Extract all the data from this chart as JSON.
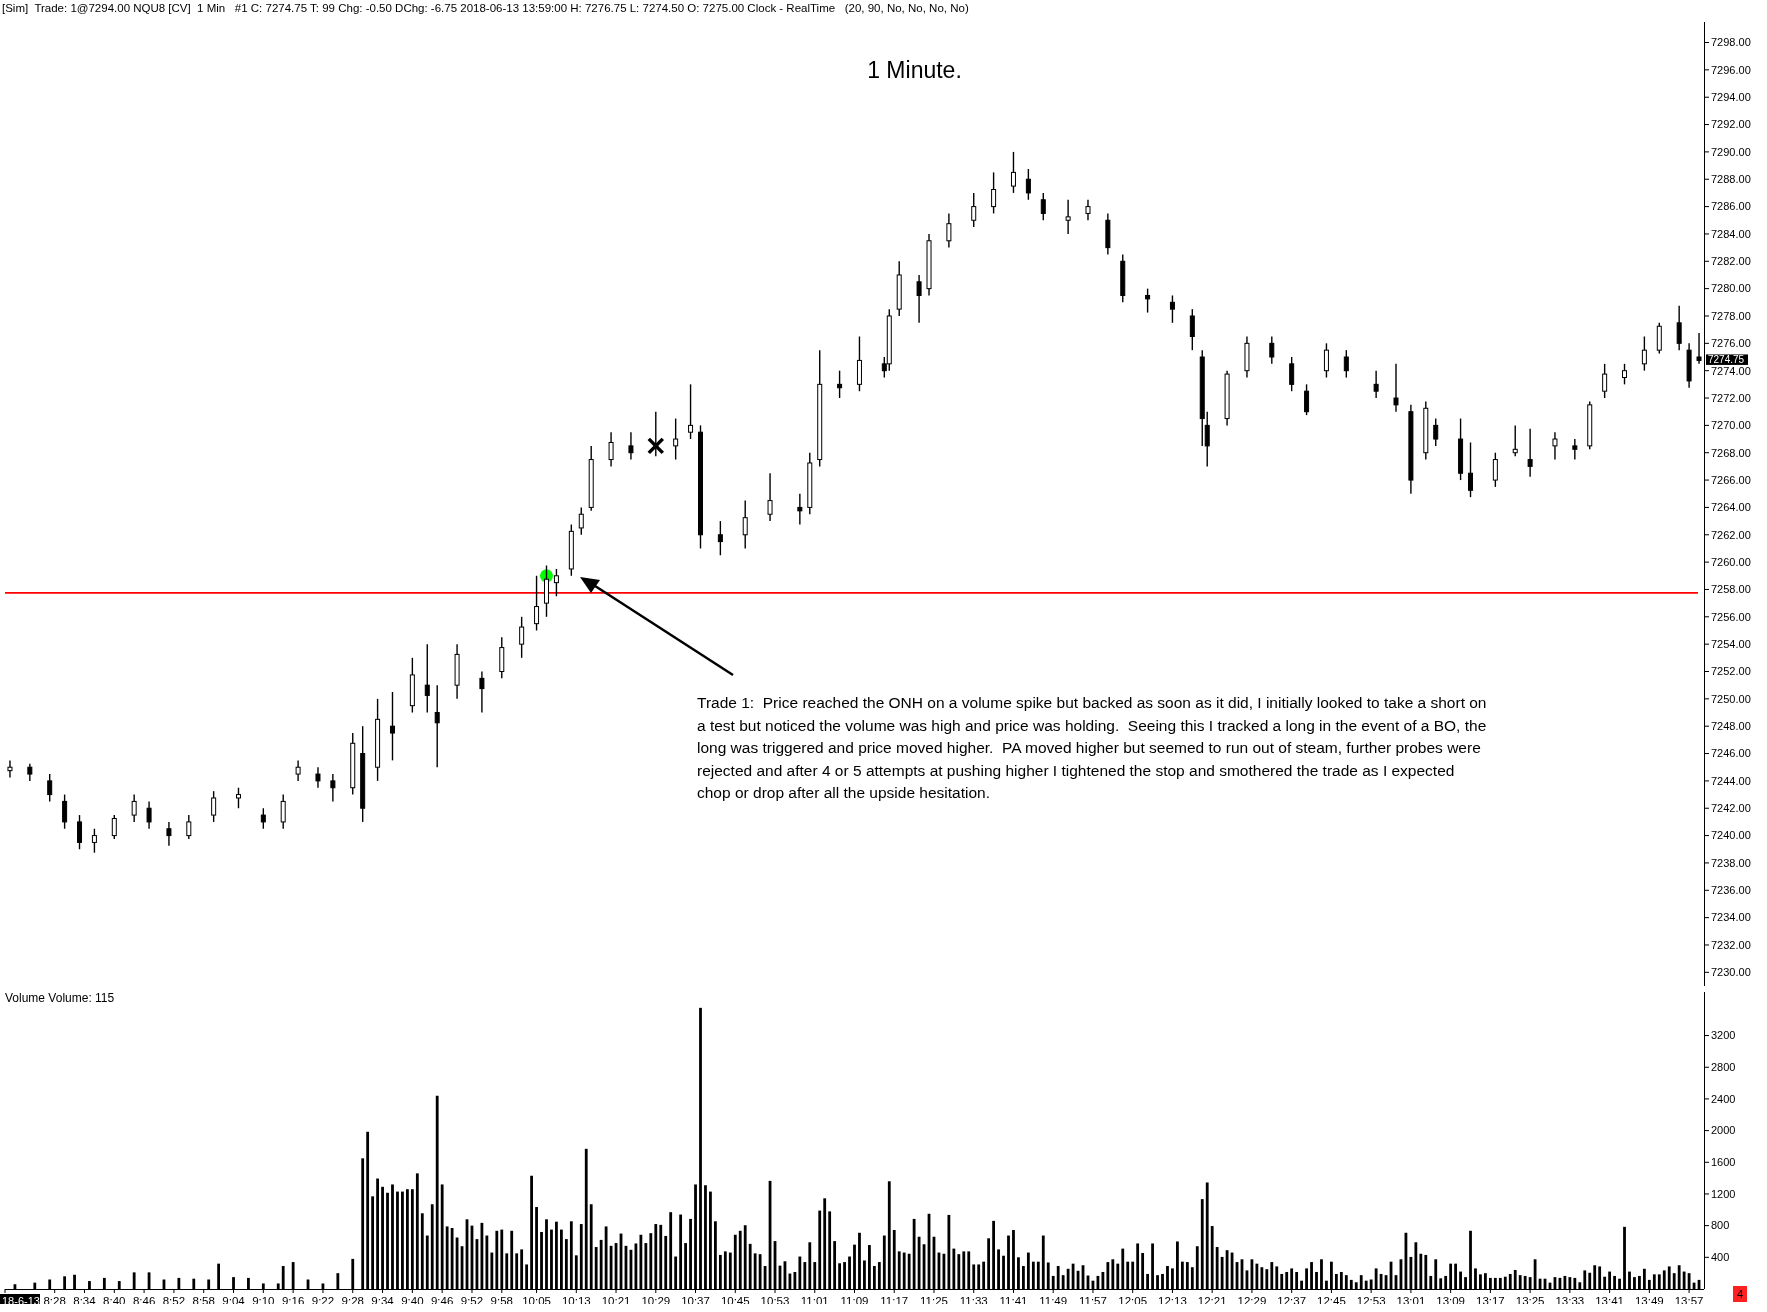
{
  "chart_data": [
    {
      "type": "candlestick",
      "title": "1 Minute.",
      "x": [
        "2018-06-13T08:19",
        "2018-06-13T08:23",
        "2018-06-13T08:27",
        "2018-06-13T08:30",
        "2018-06-13T08:33",
        "2018-06-13T08:36",
        "2018-06-13T08:40",
        "2018-06-13T08:44",
        "2018-06-13T08:47",
        "2018-06-13T08:51",
        "2018-06-13T08:55",
        "2018-06-13T09:00",
        "2018-06-13T09:05",
        "2018-06-13T09:10",
        "2018-06-13T09:14",
        "2018-06-13T09:17",
        "2018-06-13T09:21",
        "2018-06-13T09:24",
        "2018-06-13T09:28",
        "2018-06-13T09:30",
        "2018-06-13T09:33",
        "2018-06-13T09:36",
        "2018-06-13T09:40",
        "2018-06-13T09:43",
        "2018-06-13T09:45",
        "2018-06-13T09:49",
        "2018-06-13T09:54",
        "2018-06-13T09:58",
        "2018-06-13T10:02",
        "2018-06-13T10:05",
        "2018-06-13T10:07",
        "2018-06-13T10:09",
        "2018-06-13T10:12",
        "2018-06-13T10:14",
        "2018-06-13T10:16",
        "2018-06-13T10:20",
        "2018-06-13T10:24",
        "2018-06-13T10:29",
        "2018-06-13T10:33",
        "2018-06-13T10:36",
        "2018-06-13T10:38",
        "2018-06-13T10:42",
        "2018-06-13T10:47",
        "2018-06-13T10:52",
        "2018-06-13T10:58",
        "2018-06-13T11:00",
        "2018-06-13T11:02",
        "2018-06-13T11:06",
        "2018-06-13T11:10",
        "2018-06-13T11:15",
        "2018-06-13T11:16",
        "2018-06-13T11:18",
        "2018-06-13T11:22",
        "2018-06-13T11:24",
        "2018-06-13T11:28",
        "2018-06-13T11:33",
        "2018-06-13T11:37",
        "2018-06-13T11:41",
        "2018-06-13T11:44",
        "2018-06-13T11:47",
        "2018-06-13T11:52",
        "2018-06-13T11:56",
        "2018-06-13T12:00",
        "2018-06-13T12:03",
        "2018-06-13T12:08",
        "2018-06-13T12:13",
        "2018-06-13T12:17",
        "2018-06-13T12:19",
        "2018-06-13T12:20",
        "2018-06-13T12:24",
        "2018-06-13T12:28",
        "2018-06-13T12:33",
        "2018-06-13T12:37",
        "2018-06-13T12:40",
        "2018-06-13T12:44",
        "2018-06-13T12:48",
        "2018-06-13T12:54",
        "2018-06-13T12:58",
        "2018-06-13T13:01",
        "2018-06-13T13:04",
        "2018-06-13T13:06",
        "2018-06-13T13:11",
        "2018-06-13T13:13",
        "2018-06-13T13:18",
        "2018-06-13T13:22",
        "2018-06-13T13:25",
        "2018-06-13T13:30",
        "2018-06-13T13:34",
        "2018-06-13T13:37",
        "2018-06-13T13:40",
        "2018-06-13T13:44",
        "2018-06-13T13:48",
        "2018-06-13T13:51",
        "2018-06-13T13:55",
        "2018-06-13T13:57",
        "2018-06-13T13:59"
      ],
      "ohlc": [
        [
          7244.75,
          7245.5,
          7244.25,
          7245
        ],
        [
          7245,
          7245.25,
          7244,
          7244.5
        ],
        [
          7244,
          7244.5,
          7242.5,
          7243
        ],
        [
          7242.5,
          7243,
          7240.5,
          7241
        ],
        [
          7241,
          7241.5,
          7239,
          7239.5
        ],
        [
          7239.5,
          7240.5,
          7238.75,
          7240
        ],
        [
          7240,
          7241.5,
          7239.75,
          7241.25
        ],
        [
          7241.5,
          7243,
          7241,
          7242.5
        ],
        [
          7242,
          7242.5,
          7240.5,
          7241
        ],
        [
          7240.5,
          7241,
          7239.25,
          7240
        ],
        [
          7240,
          7241.5,
          7239.75,
          7241
        ],
        [
          7241.5,
          7243.25,
          7241,
          7242.75
        ],
        [
          7242.75,
          7243.5,
          7242,
          7243
        ],
        [
          7241.5,
          7242,
          7240.5,
          7241
        ],
        [
          7241,
          7243,
          7240.5,
          7242.5
        ],
        [
          7244.5,
          7245.5,
          7244,
          7245
        ],
        [
          7244.5,
          7245,
          7243.5,
          7244
        ],
        [
          7244,
          7244.5,
          7242.5,
          7243.5
        ],
        [
          7243.5,
          7247.5,
          7243,
          7246.75
        ],
        [
          7246,
          7248,
          7241,
          7242
        ],
        [
          7245,
          7250,
          7244,
          7248.5
        ],
        [
          7248,
          7250.5,
          7245.5,
          7247.5
        ],
        [
          7249.5,
          7253,
          7249,
          7251.75
        ],
        [
          7251,
          7254,
          7249,
          7250.25
        ],
        [
          7249,
          7251,
          7245,
          7248.25
        ],
        [
          7251,
          7254,
          7250,
          7253.25
        ],
        [
          7251.5,
          7252,
          7249,
          7250.75
        ],
        [
          7252,
          7254.5,
          7251.5,
          7253.75
        ],
        [
          7254,
          7256,
          7253,
          7255.25
        ],
        [
          7255.5,
          7259,
          7255,
          7256.75
        ],
        [
          7257,
          7259.75,
          7256,
          7258.75
        ],
        [
          7258.5,
          7259.5,
          7257.5,
          7259
        ],
        [
          7259.5,
          7262.75,
          7259,
          7262.25
        ],
        [
          7262.5,
          7264,
          7262,
          7263.5
        ],
        [
          7264,
          7268.5,
          7263.75,
          7267.5
        ],
        [
          7267.5,
          7269.5,
          7267,
          7268.75
        ],
        [
          7268.5,
          7269.5,
          7267.5,
          7268
        ],
        [
          7268.5,
          7271,
          7267.75,
          7268.5
        ],
        [
          7268.5,
          7270.5,
          7267.5,
          7269
        ],
        [
          7269.5,
          7273,
          7269,
          7270
        ],
        [
          7269.5,
          7270,
          7261,
          7262
        ],
        [
          7262,
          7263,
          7260.5,
          7261.5
        ],
        [
          7262,
          7264.5,
          7261,
          7263.25
        ],
        [
          7263.5,
          7266.5,
          7263,
          7264.5
        ],
        [
          7264,
          7265,
          7262.75,
          7263.75
        ],
        [
          7264,
          7268,
          7263.5,
          7267.25
        ],
        [
          7267.5,
          7275.5,
          7267,
          7273
        ],
        [
          7273,
          7274,
          7272,
          7272.75
        ],
        [
          7273,
          7276.5,
          7272.5,
          7274.75
        ],
        [
          7274.5,
          7275,
          7273.5,
          7274
        ],
        [
          7274.5,
          7278.5,
          7274,
          7278
        ],
        [
          7278.5,
          7282,
          7278,
          7281
        ],
        [
          7280.5,
          7281,
          7277.5,
          7279.5
        ],
        [
          7280,
          7284,
          7279.5,
          7283.5
        ],
        [
          7283.5,
          7285.5,
          7283,
          7284.75
        ],
        [
          7285,
          7287,
          7284.5,
          7286
        ],
        [
          7286,
          7288.5,
          7285.5,
          7287.25
        ],
        [
          7287.5,
          7290,
          7287,
          7288.5
        ],
        [
          7288,
          7288.75,
          7286.5,
          7287
        ],
        [
          7286.5,
          7287,
          7285,
          7285.5
        ],
        [
          7285,
          7286.5,
          7284,
          7285.25
        ],
        [
          7285.5,
          7286.5,
          7285,
          7286
        ],
        [
          7285,
          7285.5,
          7282.5,
          7283
        ],
        [
          7282,
          7282.5,
          7279,
          7279.5
        ],
        [
          7279.5,
          7280,
          7278.25,
          7279.25
        ],
        [
          7279,
          7279.5,
          7277.5,
          7278.5
        ],
        [
          7278,
          7278.5,
          7275.5,
          7276.5
        ],
        [
          7275,
          7275.5,
          7268.5,
          7270.5
        ],
        [
          7270,
          7271,
          7267,
          7268.5
        ],
        [
          7270.5,
          7274,
          7270,
          7273.75
        ],
        [
          7274,
          7276.5,
          7273.5,
          7276
        ],
        [
          7276,
          7276.5,
          7274.5,
          7275
        ],
        [
          7274.5,
          7275,
          7272.5,
          7273
        ],
        [
          7272.5,
          7273,
          7270.75,
          7271
        ],
        [
          7274,
          7276,
          7273.5,
          7275.5
        ],
        [
          7275,
          7275.5,
          7273.5,
          7274
        ],
        [
          7273,
          7274,
          7272,
          7272.5
        ],
        [
          7272,
          7274.5,
          7271,
          7271.5
        ],
        [
          7271,
          7271.5,
          7265,
          7266
        ],
        [
          7268,
          7271.75,
          7267.5,
          7271.25
        ],
        [
          7270,
          7270.5,
          7268.5,
          7269
        ],
        [
          7269,
          7270.5,
          7266,
          7266.5
        ],
        [
          7266.5,
          7268.75,
          7264.75,
          7265.25
        ],
        [
          7266,
          7268,
          7265.5,
          7267.5
        ],
        [
          7268,
          7270,
          7267.75,
          7268.25
        ],
        [
          7267.5,
          7269.75,
          7266.25,
          7267
        ],
        [
          7268.5,
          7269.5,
          7267.5,
          7269
        ],
        [
          7268.5,
          7269,
          7267.5,
          7268.25
        ],
        [
          7268.5,
          7271.75,
          7268.25,
          7271.5
        ],
        [
          7272.5,
          7274.5,
          7272,
          7273.75
        ],
        [
          7273.5,
          7274.5,
          7273,
          7274
        ],
        [
          7274.5,
          7276.5,
          7274,
          7275.5
        ],
        [
          7275.5,
          7277.5,
          7275.25,
          7277.25
        ],
        [
          7277.5,
          7278.75,
          7275.5,
          7276
        ],
        [
          7275.5,
          7276,
          7272.75,
          7273.25
        ],
        [
          7275,
          7276.75,
          7274.5,
          7274.75
        ]
      ],
      "series": [
        {
          "type": "scatter",
          "x": [
            "2018-06-13T10:07"
          ],
          "values": [
            7259
          ],
          "color": "#00ff00",
          "marker": "circle"
        },
        {
          "type": "scatter",
          "x": [
            "2018-06-13T10:29"
          ],
          "values": [
            7268.5
          ],
          "color": "#000000",
          "marker": "cross"
        }
      ],
      "xlim": [
        "2018-06-13T08:18",
        "2018-06-13T14:00"
      ],
      "ylim": [
        7229,
        7299.5
      ],
      "yticks": [
        {
          "value": 7230,
          "label": "7230.00"
        },
        {
          "value": 7232,
          "label": "7232.00"
        },
        {
          "value": 7234,
          "label": "7234.00"
        },
        {
          "value": 7236,
          "label": "7236.00"
        },
        {
          "value": 7238,
          "label": "7238.00"
        },
        {
          "value": 7240,
          "label": "7240.00"
        },
        {
          "value": 7242,
          "label": "7242.00"
        },
        {
          "value": 7244,
          "label": "7244.00"
        },
        {
          "value": 7246,
          "label": "7246.00"
        },
        {
          "value": 7248,
          "label": "7248.00"
        },
        {
          "value": 7250,
          "label": "7250.00"
        },
        {
          "value": 7252,
          "label": "7252.00"
        },
        {
          "value": 7254,
          "label": "7254.00"
        },
        {
          "value": 7256,
          "label": "7256.00"
        },
        {
          "value": 7258,
          "label": "7258.00"
        },
        {
          "value": 7260,
          "label": "7260.00"
        },
        {
          "value": 7262,
          "label": "7262.00"
        },
        {
          "value": 7264,
          "label": "7264.00"
        },
        {
          "value": 7266,
          "label": "7266.00"
        },
        {
          "value": 7268,
          "label": "7268.00"
        },
        {
          "value": 7270,
          "label": "7270.00"
        },
        {
          "value": 7272,
          "label": "7272.00"
        },
        {
          "value": 7274,
          "label": "7274.00"
        },
        {
          "value": 7276,
          "label": "7276.00"
        },
        {
          "value": 7278,
          "label": "7278.00"
        },
        {
          "value": 7280,
          "label": "7280.00"
        },
        {
          "value": 7282,
          "label": "7282.00"
        },
        {
          "value": 7284,
          "label": "7284.00"
        },
        {
          "value": 7286,
          "label": "7286.00"
        },
        {
          "value": 7288,
          "label": "7288.00"
        },
        {
          "value": 7290,
          "label": "7290.00"
        },
        {
          "value": 7292,
          "label": "7292.00"
        },
        {
          "value": 7294,
          "label": "7294.00"
        },
        {
          "value": 7296,
          "label": "7296.00"
        },
        {
          "value": 7298,
          "label": "7298.00"
        }
      ],
      "tick_labels": "y",
      "ref_lines": [
        {
          "axis": "y",
          "value": 7257.75,
          "label": null,
          "color": "#ff0000"
        }
      ],
      "annotations": [
        "[Sim]  Trade: 1@7294.00 NQU8 [CV]  1 Min   #1 C: 7274.75 T: 99 Chg: -0.50 DChg: -6.75 2018-06-13 13:59:00 H: 7276.75 L: 7274.50 O: 7275.00 Clock - RealTime   (20, 90, No, No, No, No)",
        "Trade 1:  Price reached the ONH on a volume spike but backed as soon as it did, I initially looked to take a short on a test but noticed the volume was high and price was holding.  Seeing this I tracked a long in the event of a BO, the long was triggered and price moved higher.  PA moved higher but seemed to run out of steam, further probes were rejected and after 4 or 5 attempts at pushing higher I tightened the stop and smothered the trade as I expected chop or drop after all the upside hesitation.",
        {
          "text": "7274.75",
          "x": "2018-06-13T13:59",
          "y": 7274.75
        }
      ]
    },
    {
      "type": "bar",
      "title": "Volume  Volume: 115",
      "color": "#000000",
      "x": [
        "2018-06-13T08:20",
        "2018-06-13T08:24",
        "2018-06-13T08:27",
        "2018-06-13T08:30",
        "2018-06-13T08:32",
        "2018-06-13T08:35",
        "2018-06-13T08:38",
        "2018-06-13T08:41",
        "2018-06-13T08:44",
        "2018-06-13T08:47",
        "2018-06-13T08:50",
        "2018-06-13T08:53",
        "2018-06-13T08:56",
        "2018-06-13T08:59",
        "2018-06-13T09:01",
        "2018-06-13T09:04",
        "2018-06-13T09:07",
        "2018-06-13T09:10",
        "2018-06-13T09:13",
        "2018-06-13T09:14",
        "2018-06-13T09:16",
        "2018-06-13T09:19",
        "2018-06-13T09:22",
        "2018-06-13T09:25",
        "2018-06-13T09:28",
        "2018-06-13T09:30",
        "2018-06-13T09:31",
        "2018-06-13T09:32",
        "2018-06-13T09:33",
        "2018-06-13T09:34",
        "2018-06-13T09:35",
        "2018-06-13T09:36",
        "2018-06-13T09:37",
        "2018-06-13T09:38",
        "2018-06-13T09:39",
        "2018-06-13T09:40",
        "2018-06-13T09:41",
        "2018-06-13T09:42",
        "2018-06-13T09:43",
        "2018-06-13T09:44",
        "2018-06-13T09:45",
        "2018-06-13T09:46",
        "2018-06-13T09:47",
        "2018-06-13T09:48",
        "2018-06-13T09:49",
        "2018-06-13T09:50",
        "2018-06-13T09:51",
        "2018-06-13T09:52",
        "2018-06-13T09:53",
        "2018-06-13T09:54",
        "2018-06-13T09:55",
        "2018-06-13T09:56",
        "2018-06-13T09:57",
        "2018-06-13T09:58",
        "2018-06-13T09:59",
        "2018-06-13T10:00",
        "2018-06-13T10:01",
        "2018-06-13T10:02",
        "2018-06-13T10:03",
        "2018-06-13T10:04",
        "2018-06-13T10:05",
        "2018-06-13T10:06",
        "2018-06-13T10:07",
        "2018-06-13T10:08",
        "2018-06-13T10:09",
        "2018-06-13T10:10",
        "2018-06-13T10:11",
        "2018-06-13T10:12",
        "2018-06-13T10:13",
        "2018-06-13T10:14",
        "2018-06-13T10:15",
        "2018-06-13T10:16",
        "2018-06-13T10:17",
        "2018-06-13T10:18",
        "2018-06-13T10:19",
        "2018-06-13T10:20",
        "2018-06-13T10:21",
        "2018-06-13T10:22",
        "2018-06-13T10:23",
        "2018-06-13T10:24",
        "2018-06-13T10:25",
        "2018-06-13T10:26",
        "2018-06-13T10:27",
        "2018-06-13T10:28",
        "2018-06-13T10:29",
        "2018-06-13T10:30",
        "2018-06-13T10:31",
        "2018-06-13T10:32",
        "2018-06-13T10:33",
        "2018-06-13T10:34",
        "2018-06-13T10:35",
        "2018-06-13T10:36",
        "2018-06-13T10:37",
        "2018-06-13T10:38",
        "2018-06-13T10:39",
        "2018-06-13T10:40",
        "2018-06-13T10:41",
        "2018-06-13T10:42",
        "2018-06-13T10:43",
        "2018-06-13T10:44",
        "2018-06-13T10:45",
        "2018-06-13T10:46",
        "2018-06-13T10:47",
        "2018-06-13T10:48",
        "2018-06-13T10:49",
        "2018-06-13T10:50",
        "2018-06-13T10:51",
        "2018-06-13T10:52",
        "2018-06-13T10:53",
        "2018-06-13T10:54",
        "2018-06-13T10:55",
        "2018-06-13T10:56",
        "2018-06-13T10:57",
        "2018-06-13T10:58",
        "2018-06-13T10:59",
        "2018-06-13T11:00",
        "2018-06-13T11:01",
        "2018-06-13T11:02",
        "2018-06-13T11:03",
        "2018-06-13T11:04",
        "2018-06-13T11:05",
        "2018-06-13T11:06",
        "2018-06-13T11:07",
        "2018-06-13T11:08",
        "2018-06-13T11:09",
        "2018-06-13T11:10",
        "2018-06-13T11:11",
        "2018-06-13T11:12",
        "2018-06-13T11:13",
        "2018-06-13T11:14",
        "2018-06-13T11:15",
        "2018-06-13T11:16",
        "2018-06-13T11:17",
        "2018-06-13T11:18",
        "2018-06-13T11:19",
        "2018-06-13T11:20",
        "2018-06-13T11:21",
        "2018-06-13T11:22",
        "2018-06-13T11:23",
        "2018-06-13T11:24",
        "2018-06-13T11:25",
        "2018-06-13T11:26",
        "2018-06-13T11:27",
        "2018-06-13T11:28",
        "2018-06-13T11:29",
        "2018-06-13T11:30",
        "2018-06-13T11:31",
        "2018-06-13T11:32",
        "2018-06-13T11:33",
        "2018-06-13T11:34",
        "2018-06-13T11:35",
        "2018-06-13T11:36",
        "2018-06-13T11:37",
        "2018-06-13T11:38",
        "2018-06-13T11:39",
        "2018-06-13T11:40",
        "2018-06-13T11:41",
        "2018-06-13T11:42",
        "2018-06-13T11:43",
        "2018-06-13T11:44",
        "2018-06-13T11:45",
        "2018-06-13T11:46",
        "2018-06-13T11:47",
        "2018-06-13T11:48",
        "2018-06-13T11:49",
        "2018-06-13T11:50",
        "2018-06-13T11:51",
        "2018-06-13T11:52",
        "2018-06-13T11:53",
        "2018-06-13T11:54",
        "2018-06-13T11:55",
        "2018-06-13T11:56",
        "2018-06-13T11:57",
        "2018-06-13T11:58",
        "2018-06-13T11:59",
        "2018-06-13T12:00",
        "2018-06-13T12:01",
        "2018-06-13T12:02",
        "2018-06-13T12:03",
        "2018-06-13T12:04",
        "2018-06-13T12:05",
        "2018-06-13T12:06",
        "2018-06-13T12:07",
        "2018-06-13T12:08",
        "2018-06-13T12:09",
        "2018-06-13T12:10",
        "2018-06-13T12:11",
        "2018-06-13T12:12",
        "2018-06-13T12:13",
        "2018-06-13T12:14",
        "2018-06-13T12:15",
        "2018-06-13T12:16",
        "2018-06-13T12:17",
        "2018-06-13T12:18",
        "2018-06-13T12:19",
        "2018-06-13T12:20",
        "2018-06-13T12:21",
        "2018-06-13T12:22",
        "2018-06-13T12:23",
        "2018-06-13T12:24",
        "2018-06-13T12:25",
        "2018-06-13T12:26",
        "2018-06-13T12:27",
        "2018-06-13T12:28",
        "2018-06-13T12:29",
        "2018-06-13T12:30",
        "2018-06-13T12:31",
        "2018-06-13T12:32",
        "2018-06-13T12:33",
        "2018-06-13T12:34",
        "2018-06-13T12:35",
        "2018-06-13T12:36",
        "2018-06-13T12:37",
        "2018-06-13T12:38",
        "2018-06-13T12:39",
        "2018-06-13T12:40",
        "2018-06-13T12:41",
        "2018-06-13T12:42",
        "2018-06-13T12:43",
        "2018-06-13T12:44",
        "2018-06-13T12:45",
        "2018-06-13T12:46",
        "2018-06-13T12:47",
        "2018-06-13T12:48",
        "2018-06-13T12:49",
        "2018-06-13T12:50",
        "2018-06-13T12:51",
        "2018-06-13T12:52",
        "2018-06-13T12:53",
        "2018-06-13T12:54",
        "2018-06-13T12:55",
        "2018-06-13T12:56",
        "2018-06-13T12:57",
        "2018-06-13T12:58",
        "2018-06-13T12:59",
        "2018-06-13T13:00",
        "2018-06-13T13:01",
        "2018-06-13T13:02",
        "2018-06-13T13:03",
        "2018-06-13T13:04",
        "2018-06-13T13:05",
        "2018-06-13T13:06",
        "2018-06-13T13:07",
        "2018-06-13T13:08",
        "2018-06-13T13:09",
        "2018-06-13T13:10",
        "2018-06-13T13:11",
        "2018-06-13T13:12",
        "2018-06-13T13:13",
        "2018-06-13T13:14",
        "2018-06-13T13:15",
        "2018-06-13T13:16",
        "2018-06-13T13:17",
        "2018-06-13T13:18",
        "2018-06-13T13:19",
        "2018-06-13T13:20",
        "2018-06-13T13:21",
        "2018-06-13T13:22",
        "2018-06-13T13:23",
        "2018-06-13T13:24",
        "2018-06-13T13:25",
        "2018-06-13T13:26",
        "2018-06-13T13:27",
        "2018-06-13T13:28",
        "2018-06-13T13:29",
        "2018-06-13T13:30",
        "2018-06-13T13:31",
        "2018-06-13T13:32",
        "2018-06-13T13:33",
        "2018-06-13T13:34",
        "2018-06-13T13:35",
        "2018-06-13T13:36",
        "2018-06-13T13:37",
        "2018-06-13T13:38",
        "2018-06-13T13:39",
        "2018-06-13T13:40",
        "2018-06-13T13:41",
        "2018-06-13T13:42",
        "2018-06-13T13:43",
        "2018-06-13T13:44",
        "2018-06-13T13:45",
        "2018-06-13T13:46",
        "2018-06-13T13:47",
        "2018-06-13T13:48",
        "2018-06-13T13:49",
        "2018-06-13T13:50",
        "2018-06-13T13:51",
        "2018-06-13T13:52",
        "2018-06-13T13:53",
        "2018-06-13T13:54",
        "2018-06-13T13:55",
        "2018-06-13T13:56",
        "2018-06-13T13:57",
        "2018-06-13T13:58",
        "2018-06-13T13:59"
      ],
      "values": [
        60,
        80,
        120,
        160,
        180,
        100,
        140,
        100,
        210,
        210,
        120,
        140,
        130,
        120,
        320,
        150,
        140,
        70,
        70,
        290,
        340,
        120,
        70,
        200,
        380,
        1650,
        1985,
        1170,
        1395,
        1290,
        1215,
        1320,
        1230,
        1230,
        1260,
        1260,
        1460,
        956,
        675,
        1070,
        2440,
        1320,
        790,
        770,
        650,
        540,
        880,
        800,
        630,
        835,
        675,
        460,
        735,
        750,
        450,
        735,
        450,
        500,
        310,
        1430,
        1035,
        720,
        880,
        750,
        850,
        750,
        630,
        855,
        425,
        820,
        1770,
        1070,
        530,
        620,
        790,
        545,
        580,
        700,
        545,
        495,
        575,
        685,
        580,
        705,
        820,
        810,
        670,
        970,
        410,
        940,
        580,
        885,
        1320,
        3550,
        1310,
        1230,
        855,
        430,
        475,
        460,
        685,
        735,
        805,
        570,
        450,
        440,
        290,
        1365,
        605,
        295,
        350,
        195,
        215,
        410,
        340,
        590,
        340,
        990,
        1145,
        980,
        605,
        325,
        340,
        410,
        560,
        710,
        360,
        555,
        290,
        340,
        675,
        1360,
        745,
        475,
        460,
        445,
        885,
        660,
        565,
        950,
        660,
        460,
        445,
        935,
        510,
        440,
        475,
        475,
        310,
        310,
        345,
        640,
        860,
        500,
        420,
        675,
        745,
        400,
        290,
        460,
        345,
        345,
        675,
        335,
        165,
        290,
        175,
        255,
        320,
        230,
        300,
        170,
        105,
        165,
        215,
        340,
        375,
        320,
        510,
        345,
        345,
        575,
        455,
        190,
        575,
        175,
        190,
        290,
        260,
        600,
        345,
        340,
        275,
        540,
        1135,
        1345,
        795,
        530,
        405,
        490,
        460,
        340,
        375,
        235,
        375,
        320,
        275,
        250,
        340,
        285,
        190,
        215,
        260,
        215,
        105,
        260,
        340,
        215,
        375,
        105,
        345,
        190,
        215,
        175,
        115,
        85,
        175,
        105,
        120,
        260,
        190,
        175,
        345,
        175,
        375,
        710,
        405,
        590,
        445,
        430,
        165,
        375,
        135,
        165,
        320,
        320,
        220,
        150,
        735,
        260,
        185,
        200,
        140,
        140,
        140,
        155,
        190,
        240,
        175,
        165,
        150,
        375,
        130,
        130,
        80,
        150,
        140,
        165,
        150,
        140,
        85,
        235,
        205,
        300,
        285,
        155,
        220,
        165,
        130,
        785,
        220,
        150,
        165,
        255,
        115,
        185,
        185,
        235,
        285,
        200,
        300,
        220,
        200,
        80,
        115
      ],
      "xlim": [
        "2018-06-13T08:18",
        "2018-06-13T14:00"
      ],
      "xticks": [
        {
          "value": "2018-06-13T08:18",
          "label": "18-6-13"
        },
        {
          "value": "2018-06-13T08:28",
          "label": "8:28"
        },
        {
          "value": "2018-06-13T08:34",
          "label": "8:34"
        },
        {
          "value": "2018-06-13T08:40",
          "label": "8:40"
        },
        {
          "value": "2018-06-13T08:46",
          "label": "8:46"
        },
        {
          "value": "2018-06-13T08:52",
          "label": "8:52"
        },
        {
          "value": "2018-06-13T08:58",
          "label": "8:58"
        },
        {
          "value": "2018-06-13T09:04",
          "label": "9:04"
        },
        {
          "value": "2018-06-13T09:10",
          "label": "9:10"
        },
        {
          "value": "2018-06-13T09:16",
          "label": "9:16"
        },
        {
          "value": "2018-06-13T09:22",
          "label": "9:22"
        },
        {
          "value": "2018-06-13T09:28",
          "label": "9:28"
        },
        {
          "value": "2018-06-13T09:34",
          "label": "9:34"
        },
        {
          "value": "2018-06-13T09:40",
          "label": "9:40"
        },
        {
          "value": "2018-06-13T09:46",
          "label": "9:46"
        },
        {
          "value": "2018-06-13T09:52",
          "label": "9:52"
        },
        {
          "value": "2018-06-13T09:58",
          "label": "9:58"
        },
        {
          "value": "2018-06-13T10:05",
          "label": "10:05"
        },
        {
          "value": "2018-06-13T10:13",
          "label": "10:13"
        },
        {
          "value": "2018-06-13T10:21",
          "label": "10:21"
        },
        {
          "value": "2018-06-13T10:29",
          "label": "10:29"
        },
        {
          "value": "2018-06-13T10:37",
          "label": "10:37"
        },
        {
          "value": "2018-06-13T10:45",
          "label": "10:45"
        },
        {
          "value": "2018-06-13T10:53",
          "label": "10:53"
        },
        {
          "value": "2018-06-13T11:01",
          "label": "11:01"
        },
        {
          "value": "2018-06-13T11:09",
          "label": "11:09"
        },
        {
          "value": "2018-06-13T11:17",
          "label": "11:17"
        },
        {
          "value": "2018-06-13T11:25",
          "label": "11:25"
        },
        {
          "value": "2018-06-13T11:33",
          "label": "11:33"
        },
        {
          "value": "2018-06-13T11:41",
          "label": "11:41"
        },
        {
          "value": "2018-06-13T11:49",
          "label": "11:49"
        },
        {
          "value": "2018-06-13T11:57",
          "label": "11:57"
        },
        {
          "value": "2018-06-13T12:05",
          "label": "12:05"
        },
        {
          "value": "2018-06-13T12:13",
          "label": "12:13"
        },
        {
          "value": "2018-06-13T12:21",
          "label": "12:21"
        },
        {
          "value": "2018-06-13T12:29",
          "label": "12:29"
        },
        {
          "value": "2018-06-13T12:37",
          "label": "12:37"
        },
        {
          "value": "2018-06-13T12:45",
          "label": "12:45"
        },
        {
          "value": "2018-06-13T12:53",
          "label": "12:53"
        },
        {
          "value": "2018-06-13T13:01",
          "label": "13:01"
        },
        {
          "value": "2018-06-13T13:09",
          "label": "13:09"
        },
        {
          "value": "2018-06-13T13:17",
          "label": "13:17"
        },
        {
          "value": "2018-06-13T13:25",
          "label": "13:25"
        },
        {
          "value": "2018-06-13T13:33",
          "label": "13:33"
        },
        {
          "value": "2018-06-13T13:41",
          "label": "13:41"
        },
        {
          "value": "2018-06-13T13:49",
          "label": "13:49"
        },
        {
          "value": "2018-06-13T13:57",
          "label": "13:57"
        }
      ],
      "ylim": [
        0,
        3750
      ],
      "yticks": [
        400,
        800,
        1200,
        1600,
        2000,
        2400,
        2800,
        3200
      ],
      "annotations": [
        "4"
      ]
    }
  ]
}
